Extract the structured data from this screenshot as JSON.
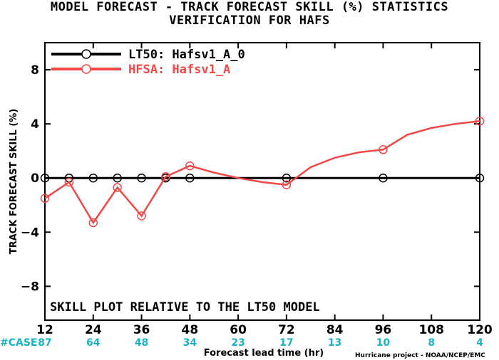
{
  "title_line1": "MODEL FORECAST - TRACK FORECAST SKILL (%) STATISTICS",
  "title_line2": "VERIFICATION FOR HAFS",
  "note": "SKILL PLOT RELATIVE TO THE LT50 MODEL",
  "case_label": "#CASE",
  "credit": "Hurricane project - NOAA/NCEP/EMC",
  "colors": {
    "baseline": "#000000",
    "model": "#f04848",
    "cases": "#1bb3c4"
  },
  "chart_data": {
    "type": "line",
    "xlabel": "Forecast lead time (hr)",
    "ylabel": "TRACK FORECAST SKILL (%)",
    "xlim": [
      12,
      120
    ],
    "ylim": [
      -10.5,
      10
    ],
    "xticks": [
      12,
      24,
      36,
      48,
      60,
      72,
      84,
      96,
      108,
      120
    ],
    "yticks": [
      -8,
      -4,
      0,
      4,
      8
    ],
    "cases": [
      "87",
      "64",
      "48",
      "34",
      "23",
      "17",
      "13",
      "10",
      "8",
      "4"
    ],
    "grid": false,
    "legend_position": "top-left",
    "series": [
      {
        "name": "LT50: Hafsv1_A_0",
        "color": "#000000",
        "x": [
          12,
          18,
          24,
          30,
          36,
          42,
          48,
          54,
          60,
          66,
          72,
          78,
          84,
          90,
          96,
          102,
          108,
          114,
          120
        ],
        "y": [
          0,
          0,
          0,
          0,
          0,
          0,
          0,
          0,
          0,
          0,
          0,
          0,
          0,
          0,
          0,
          0,
          0,
          0,
          0
        ],
        "markers_at": [
          12,
          18,
          24,
          30,
          36,
          42,
          48,
          72,
          96,
          120
        ]
      },
      {
        "name": "HFSA: Hafsv1_A",
        "color": "#f04848",
        "x": [
          12,
          18,
          24,
          30,
          36,
          42,
          48,
          54,
          60,
          66,
          72,
          78,
          84,
          90,
          96,
          102,
          108,
          114,
          120
        ],
        "y": [
          -1.5,
          -0.3,
          -3.3,
          -0.7,
          -2.8,
          0.1,
          0.9,
          0.4,
          0.0,
          -0.3,
          -0.5,
          0.8,
          1.5,
          1.9,
          2.1,
          3.2,
          3.7,
          4.0,
          4.2
        ],
        "markers_at": [
          12,
          18,
          24,
          30,
          36,
          42,
          48,
          72,
          96,
          120
        ]
      }
    ]
  }
}
